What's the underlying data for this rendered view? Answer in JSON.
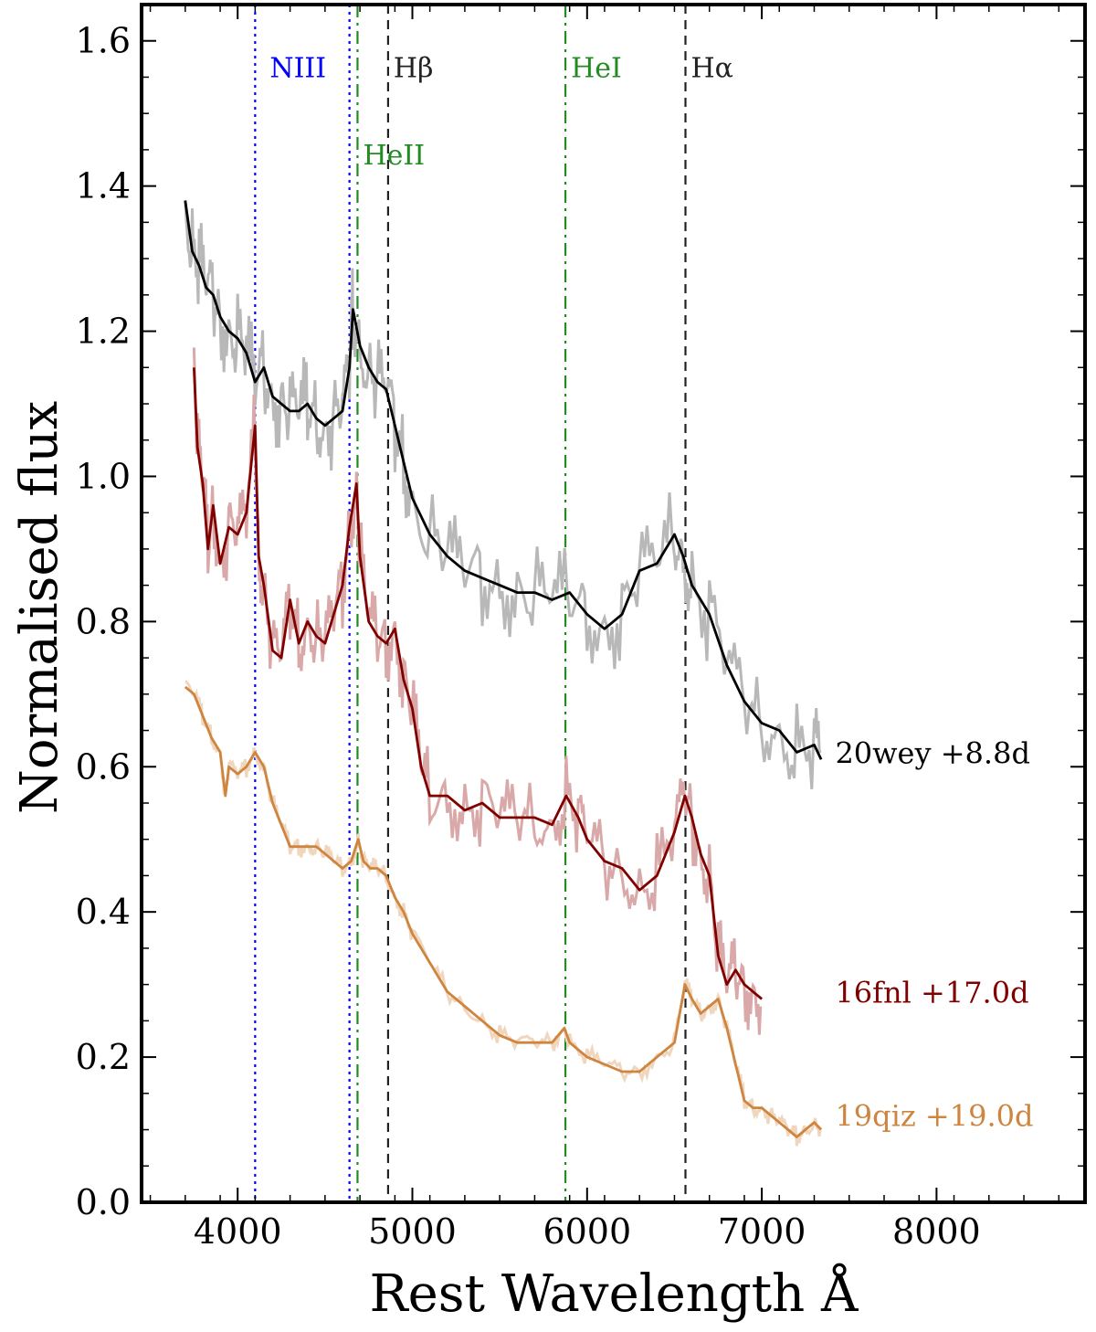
{
  "chart_data": {
    "type": "line",
    "title": "",
    "xlabel": "Rest Wavelength Å",
    "ylabel": "Normalised flux",
    "xlim": [
      3450,
      8850
    ],
    "ylim": [
      0.0,
      1.65
    ],
    "xticks": [
      "4000",
      "5000",
      "6000",
      "7000",
      "8000"
    ],
    "yticks": [
      "0.0",
      "0.2",
      "0.4",
      "0.6",
      "0.8",
      "1.0",
      "1.2",
      "1.4",
      "1.6"
    ],
    "grid": false,
    "reference_lines": [
      {
        "label": "NIII",
        "x": 4100,
        "color": "#0000ff",
        "style": "dotted"
      },
      {
        "label": "",
        "x": 4640,
        "color": "#0000ff",
        "style": "dotted"
      },
      {
        "label": "HeII",
        "x": 4686,
        "color": "#228b22",
        "style": "dashdot"
      },
      {
        "label": "Hβ",
        "x": 4861,
        "color": "#222222",
        "style": "dashed"
      },
      {
        "label": "HeI",
        "x": 5876,
        "color": "#228b22",
        "style": "dashdot"
      },
      {
        "label": "Hα",
        "x": 6563,
        "color": "#222222",
        "style": "dashed"
      }
    ],
    "series": [
      {
        "name": "20wey +8.8d",
        "color": "#000000",
        "noise_color": "#b8b8b8",
        "x": [
          3700,
          3740,
          3780,
          3820,
          3860,
          3900,
          3950,
          4000,
          4050,
          4100,
          4150,
          4200,
          4250,
          4300,
          4350,
          4400,
          4450,
          4500,
          4550,
          4600,
          4640,
          4660,
          4700,
          4750,
          4800,
          4850,
          4900,
          4950,
          5000,
          5100,
          5200,
          5300,
          5400,
          5500,
          5600,
          5700,
          5800,
          5900,
          6000,
          6100,
          6200,
          6300,
          6400,
          6500,
          6550,
          6600,
          6700,
          6800,
          6900,
          7000,
          7100,
          7200,
          7300,
          7340
        ],
        "values": [
          1.38,
          1.31,
          1.29,
          1.26,
          1.25,
          1.22,
          1.2,
          1.19,
          1.17,
          1.13,
          1.15,
          1.11,
          1.1,
          1.09,
          1.09,
          1.1,
          1.08,
          1.07,
          1.08,
          1.09,
          1.15,
          1.23,
          1.18,
          1.15,
          1.13,
          1.12,
          1.07,
          1.02,
          0.97,
          0.92,
          0.89,
          0.87,
          0.86,
          0.85,
          0.84,
          0.84,
          0.83,
          0.84,
          0.81,
          0.79,
          0.81,
          0.87,
          0.88,
          0.92,
          0.89,
          0.85,
          0.81,
          0.74,
          0.69,
          0.66,
          0.65,
          0.62,
          0.63,
          0.61
        ]
      },
      {
        "name": "16fnl +17.0d",
        "color": "#800000",
        "noise_color": "#d9a8a8",
        "x": [
          3750,
          3770,
          3800,
          3830,
          3860,
          3900,
          3950,
          4000,
          4050,
          4100,
          4120,
          4150,
          4200,
          4250,
          4300,
          4350,
          4400,
          4450,
          4500,
          4550,
          4600,
          4640,
          4680,
          4700,
          4750,
          4800,
          4850,
          4900,
          4950,
          5000,
          5050,
          5100,
          5200,
          5300,
          5400,
          5500,
          5600,
          5700,
          5800,
          5880,
          5950,
          6000,
          6100,
          6200,
          6300,
          6400,
          6500,
          6560,
          6600,
          6650,
          6700,
          6750,
          6800,
          6850,
          6900,
          6950,
          7000
        ],
        "values": [
          1.15,
          1.04,
          0.99,
          0.9,
          0.96,
          0.88,
          0.93,
          0.92,
          0.95,
          1.07,
          0.89,
          0.85,
          0.76,
          0.75,
          0.83,
          0.77,
          0.8,
          0.78,
          0.77,
          0.81,
          0.85,
          0.93,
          0.99,
          0.89,
          0.8,
          0.78,
          0.77,
          0.79,
          0.72,
          0.68,
          0.6,
          0.56,
          0.56,
          0.54,
          0.55,
          0.53,
          0.53,
          0.53,
          0.52,
          0.56,
          0.53,
          0.5,
          0.47,
          0.46,
          0.43,
          0.45,
          0.51,
          0.56,
          0.53,
          0.48,
          0.45,
          0.34,
          0.3,
          0.32,
          0.3,
          0.29,
          0.28
        ]
      },
      {
        "name": "19qiz +19.0d",
        "color": "#cd853f",
        "noise_color": "#f0d6bc",
        "x": [
          3700,
          3750,
          3800,
          3850,
          3900,
          3930,
          3950,
          4000,
          4050,
          4100,
          4150,
          4200,
          4250,
          4300,
          4350,
          4400,
          4450,
          4500,
          4550,
          4600,
          4650,
          4690,
          4720,
          4760,
          4800,
          4850,
          4900,
          4950,
          5000,
          5100,
          5200,
          5300,
          5400,
          5500,
          5600,
          5700,
          5800,
          5870,
          5900,
          6000,
          6100,
          6200,
          6300,
          6400,
          6500,
          6560,
          6600,
          6650,
          6700,
          6750,
          6800,
          6850,
          6900,
          6950,
          7000,
          7050,
          7100,
          7150,
          7200,
          7250,
          7300,
          7340
        ],
        "values": [
          0.71,
          0.7,
          0.67,
          0.64,
          0.62,
          0.56,
          0.6,
          0.59,
          0.6,
          0.62,
          0.6,
          0.55,
          0.52,
          0.49,
          0.49,
          0.49,
          0.49,
          0.48,
          0.47,
          0.46,
          0.47,
          0.5,
          0.47,
          0.46,
          0.46,
          0.45,
          0.42,
          0.4,
          0.37,
          0.33,
          0.29,
          0.27,
          0.25,
          0.23,
          0.22,
          0.22,
          0.22,
          0.24,
          0.22,
          0.2,
          0.19,
          0.18,
          0.18,
          0.2,
          0.22,
          0.3,
          0.28,
          0.26,
          0.27,
          0.28,
          0.24,
          0.19,
          0.14,
          0.13,
          0.13,
          0.12,
          0.11,
          0.1,
          0.09,
          0.1,
          0.11,
          0.1
        ]
      }
    ]
  }
}
